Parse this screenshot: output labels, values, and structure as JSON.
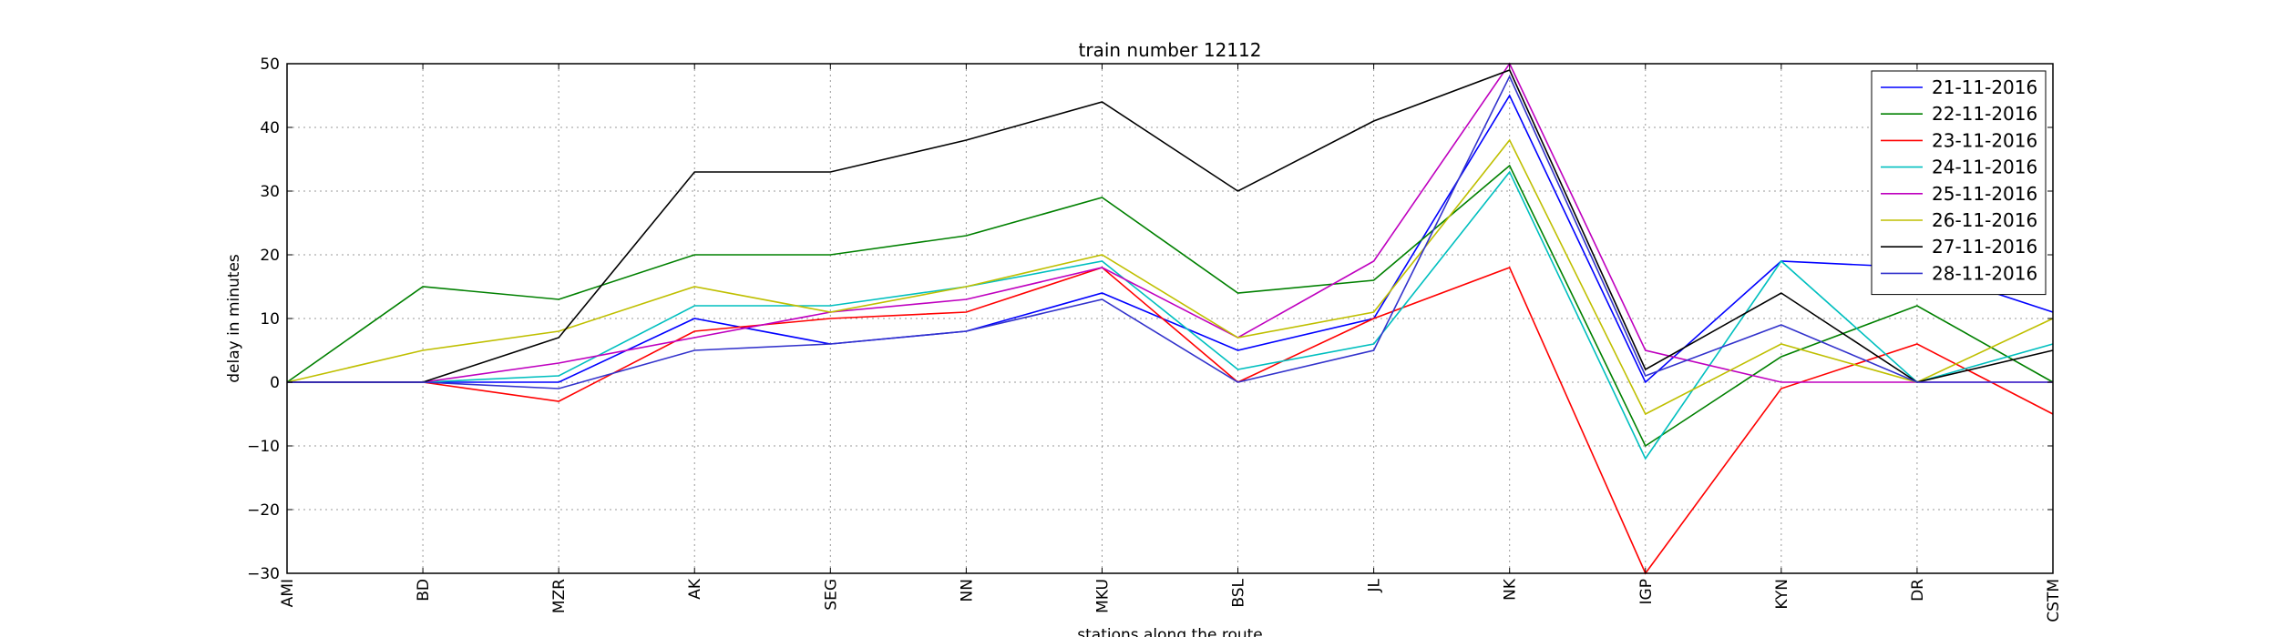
{
  "chart_data": {
    "type": "line",
    "title": "train number 12112",
    "xlabel": "stations along the route",
    "ylabel": "delay in minutes",
    "ylim": [
      -30,
      50
    ],
    "yticks": [
      -30,
      -20,
      -10,
      0,
      10,
      20,
      30,
      40,
      50
    ],
    "ytick_labels": [
      "−30",
      "−20",
      "−10",
      "0",
      "10",
      "20",
      "30",
      "40",
      "50"
    ],
    "grid": true,
    "legend_position": "top-right",
    "categories": [
      "AMI",
      "BD",
      "MZR",
      "AK",
      "SEG",
      "NN",
      "MKU",
      "BSL",
      "JL",
      "NK",
      "IGP",
      "KYN",
      "DR",
      "CSTM"
    ],
    "series": [
      {
        "name": "21-11-2016",
        "color": "#0000ff",
        "values": [
          0,
          0,
          0,
          10,
          6,
          8,
          14,
          5,
          10,
          45,
          0,
          19,
          18,
          11
        ]
      },
      {
        "name": "22-11-2016",
        "color": "#008000",
        "values": [
          0,
          15,
          13,
          20,
          20,
          23,
          29,
          14,
          16,
          34,
          -10,
          4,
          12,
          0
        ]
      },
      {
        "name": "23-11-2016",
        "color": "#ff0000",
        "values": [
          0,
          0,
          -3,
          8,
          10,
          11,
          18,
          0,
          10,
          18,
          -30,
          -1,
          6,
          -5
        ]
      },
      {
        "name": "24-11-2016",
        "color": "#00bfbf",
        "values": [
          0,
          0,
          1,
          12,
          12,
          15,
          19,
          2,
          6,
          33,
          -12,
          19,
          0,
          6
        ]
      },
      {
        "name": "25-11-2016",
        "color": "#bf00bf",
        "values": [
          0,
          0,
          3,
          7,
          11,
          13,
          18,
          7,
          19,
          50,
          5,
          0,
          0,
          0
        ]
      },
      {
        "name": "26-11-2016",
        "color": "#bfbf00",
        "values": [
          0,
          5,
          8,
          15,
          11,
          15,
          20,
          7,
          11,
          38,
          -5,
          6,
          0,
          10
        ]
      },
      {
        "name": "27-11-2016",
        "color": "#000000",
        "values": [
          0,
          0,
          7,
          33,
          33,
          38,
          44,
          30,
          41,
          49,
          2,
          14,
          0,
          5
        ]
      },
      {
        "name": "28-11-2016",
        "color": "#3333cc",
        "values": [
          0,
          0,
          -1,
          5,
          6,
          8,
          13,
          0,
          5,
          48,
          1,
          9,
          0,
          0
        ]
      }
    ]
  }
}
